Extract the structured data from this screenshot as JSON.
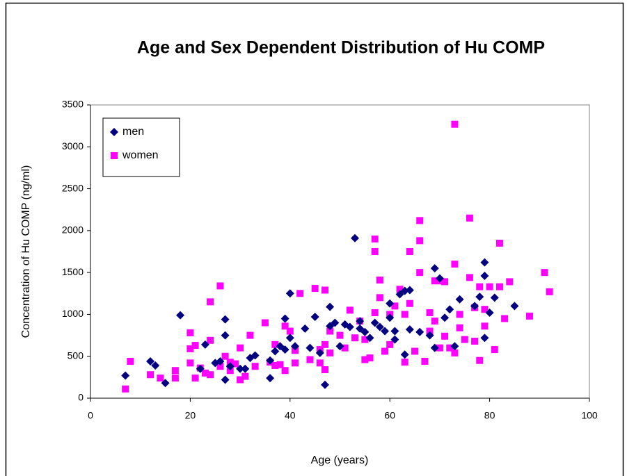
{
  "chart_data": {
    "type": "scatter",
    "title": "Age and Sex Dependent Distribution of Hu COMP",
    "x_label": "Age (years)",
    "y_label": "Concentration of Hu COMP (ng/ml)",
    "xlim": [
      0,
      100
    ],
    "xticks": [
      0,
      20,
      40,
      60,
      80,
      100
    ],
    "ylim": [
      0,
      3500
    ],
    "yticks": [
      0,
      500,
      1000,
      1500,
      2000,
      2500,
      3000,
      3500
    ],
    "legend": "upper-left",
    "series": [
      {
        "name": "men",
        "color": "#000080",
        "marker": "diamond",
        "x": [
          7,
          12,
          13,
          15,
          18,
          22,
          23,
          25,
          26,
          27,
          27,
          27,
          28,
          30,
          31,
          32,
          33,
          36,
          36,
          37,
          38,
          39,
          39,
          40,
          40,
          41,
          43,
          44,
          45,
          46,
          47,
          48,
          48,
          49,
          50,
          51,
          52,
          53,
          54,
          54,
          55,
          56,
          57,
          58,
          59,
          60,
          60,
          61,
          61,
          62,
          63,
          63,
          64,
          64,
          66,
          68,
          69,
          69,
          70,
          71,
          72,
          73,
          74,
          77,
          78,
          79,
          79,
          79,
          80,
          81,
          85
        ],
        "values": [
          270,
          440,
          390,
          180,
          990,
          350,
          640,
          420,
          440,
          940,
          750,
          220,
          380,
          350,
          350,
          480,
          510,
          240,
          450,
          560,
          620,
          950,
          580,
          1250,
          720,
          620,
          830,
          600,
          970,
          540,
          160,
          1090,
          860,
          900,
          620,
          880,
          850,
          1910,
          920,
          830,
          790,
          720,
          900,
          850,
          800,
          1130,
          960,
          800,
          700,
          1240,
          1280,
          520,
          1290,
          820,
          790,
          750,
          1550,
          600,
          1430,
          960,
          1060,
          620,
          1180,
          1100,
          1210,
          1620,
          1460,
          720,
          1020,
          1200,
          1100
        ]
      },
      {
        "name": "women",
        "color": "#ff00ff",
        "marker": "square",
        "x": [
          7,
          8,
          12,
          14,
          17,
          17,
          20,
          20,
          20,
          21,
          21,
          22,
          23,
          24,
          24,
          24,
          26,
          26,
          27,
          28,
          28,
          29,
          30,
          30,
          31,
          32,
          33,
          35,
          36,
          37,
          37,
          38,
          39,
          39,
          40,
          41,
          41,
          42,
          44,
          45,
          46,
          46,
          47,
          47,
          47,
          48,
          48,
          50,
          51,
          52,
          53,
          54,
          55,
          55,
          56,
          57,
          57,
          57,
          58,
          58,
          59,
          60,
          60,
          61,
          62,
          63,
          63,
          64,
          64,
          65,
          66,
          66,
          66,
          67,
          68,
          68,
          69,
          69,
          70,
          70,
          71,
          71,
          72,
          73,
          73,
          73,
          74,
          74,
          75,
          76,
          76,
          77,
          77,
          78,
          78,
          79,
          79,
          80,
          81,
          82,
          82,
          83,
          84,
          88,
          91,
          92
        ],
        "values": [
          110,
          440,
          280,
          240,
          330,
          240,
          780,
          590,
          420,
          630,
          240,
          360,
          300,
          1150,
          690,
          280,
          1340,
          380,
          500,
          430,
          330,
          410,
          600,
          220,
          260,
          750,
          380,
          900,
          430,
          640,
          390,
          400,
          330,
          860,
          800,
          570,
          420,
          1250,
          460,
          1310,
          580,
          420,
          1290,
          640,
          340,
          800,
          540,
          750,
          600,
          1050,
          720,
          920,
          700,
          460,
          480,
          1900,
          1750,
          1020,
          1200,
          1410,
          560,
          1000,
          640,
          1100,
          1300,
          1000,
          430,
          1750,
          1130,
          560,
          1880,
          2120,
          1500,
          440,
          800,
          1020,
          1400,
          920,
          1400,
          600,
          740,
          1390,
          600,
          3270,
          1600,
          540,
          1000,
          840,
          700,
          2150,
          1440,
          1080,
          680,
          450,
          1330,
          860,
          1060,
          1330,
          580,
          1850,
          1330,
          950,
          1390,
          980,
          1500,
          1270
        ]
      }
    ]
  }
}
